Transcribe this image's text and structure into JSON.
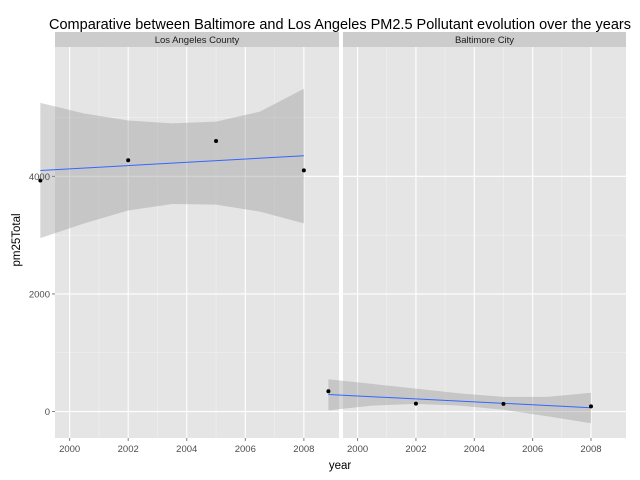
{
  "chart_data": {
    "type": "scatter",
    "title": "Comparative between Baltimore and Los Angeles PM2.5 Pollutant evolution over the years",
    "xlabel": "year",
    "ylabel": "pm25Total",
    "xlim": [
      1999.5,
      2009.2
    ],
    "ylim": [
      -450,
      6200
    ],
    "x_ticks": [
      2000,
      2002,
      2004,
      2006,
      2008
    ],
    "x_tick_labels": [
      "2000",
      "2002",
      "2004",
      "2006",
      "2008"
    ],
    "y_ticks": [
      0,
      2000,
      4000
    ],
    "y_tick_labels": [
      "0",
      "2000",
      "4000"
    ],
    "grid": true,
    "legend": "none",
    "colors": {
      "panel_background": "#e5e5e5",
      "strip_background": "#cccccc",
      "grid_major": "#ffffff",
      "grid_minor": "#f2f2f2",
      "band_fill": "#999999",
      "trend_line": "#3366ff",
      "points": "#000000"
    },
    "facets": [
      {
        "strip": "Los Angeles County",
        "points": [
          {
            "x": 1999,
            "y": 3930
          },
          {
            "x": 2002,
            "y": 4274
          },
          {
            "x": 2005,
            "y": 4601
          },
          {
            "x": 2008,
            "y": 4101
          }
        ],
        "fit": {
          "x": [
            1999,
            2008
          ],
          "y": [
            4100,
            4350
          ]
        },
        "band": {
          "x": [
            1999,
            2000.5,
            2002,
            2003.5,
            2005,
            2006.5,
            2008
          ],
          "lower": [
            2950,
            3200,
            3420,
            3530,
            3520,
            3400,
            3200
          ],
          "upper": [
            5250,
            5070,
            4950,
            4900,
            4930,
            5100,
            5490
          ]
        }
      },
      {
        "strip": "Baltimore City",
        "points": [
          {
            "x": 1999,
            "y": 346
          },
          {
            "x": 2002,
            "y": 134
          },
          {
            "x": 2005,
            "y": 130
          },
          {
            "x": 2008,
            "y": 88
          }
        ],
        "fit": {
          "x": [
            1999,
            2008
          ],
          "y": [
            290,
            65
          ]
        },
        "band": {
          "x": [
            1999,
            2000.5,
            2002,
            2003.5,
            2005,
            2006.5,
            2008
          ],
          "lower": [
            20,
            100,
            130,
            100,
            30,
            -80,
            -200
          ],
          "upper": [
            550,
            470,
            390,
            310,
            250,
            250,
            320
          ]
        }
      }
    ]
  }
}
